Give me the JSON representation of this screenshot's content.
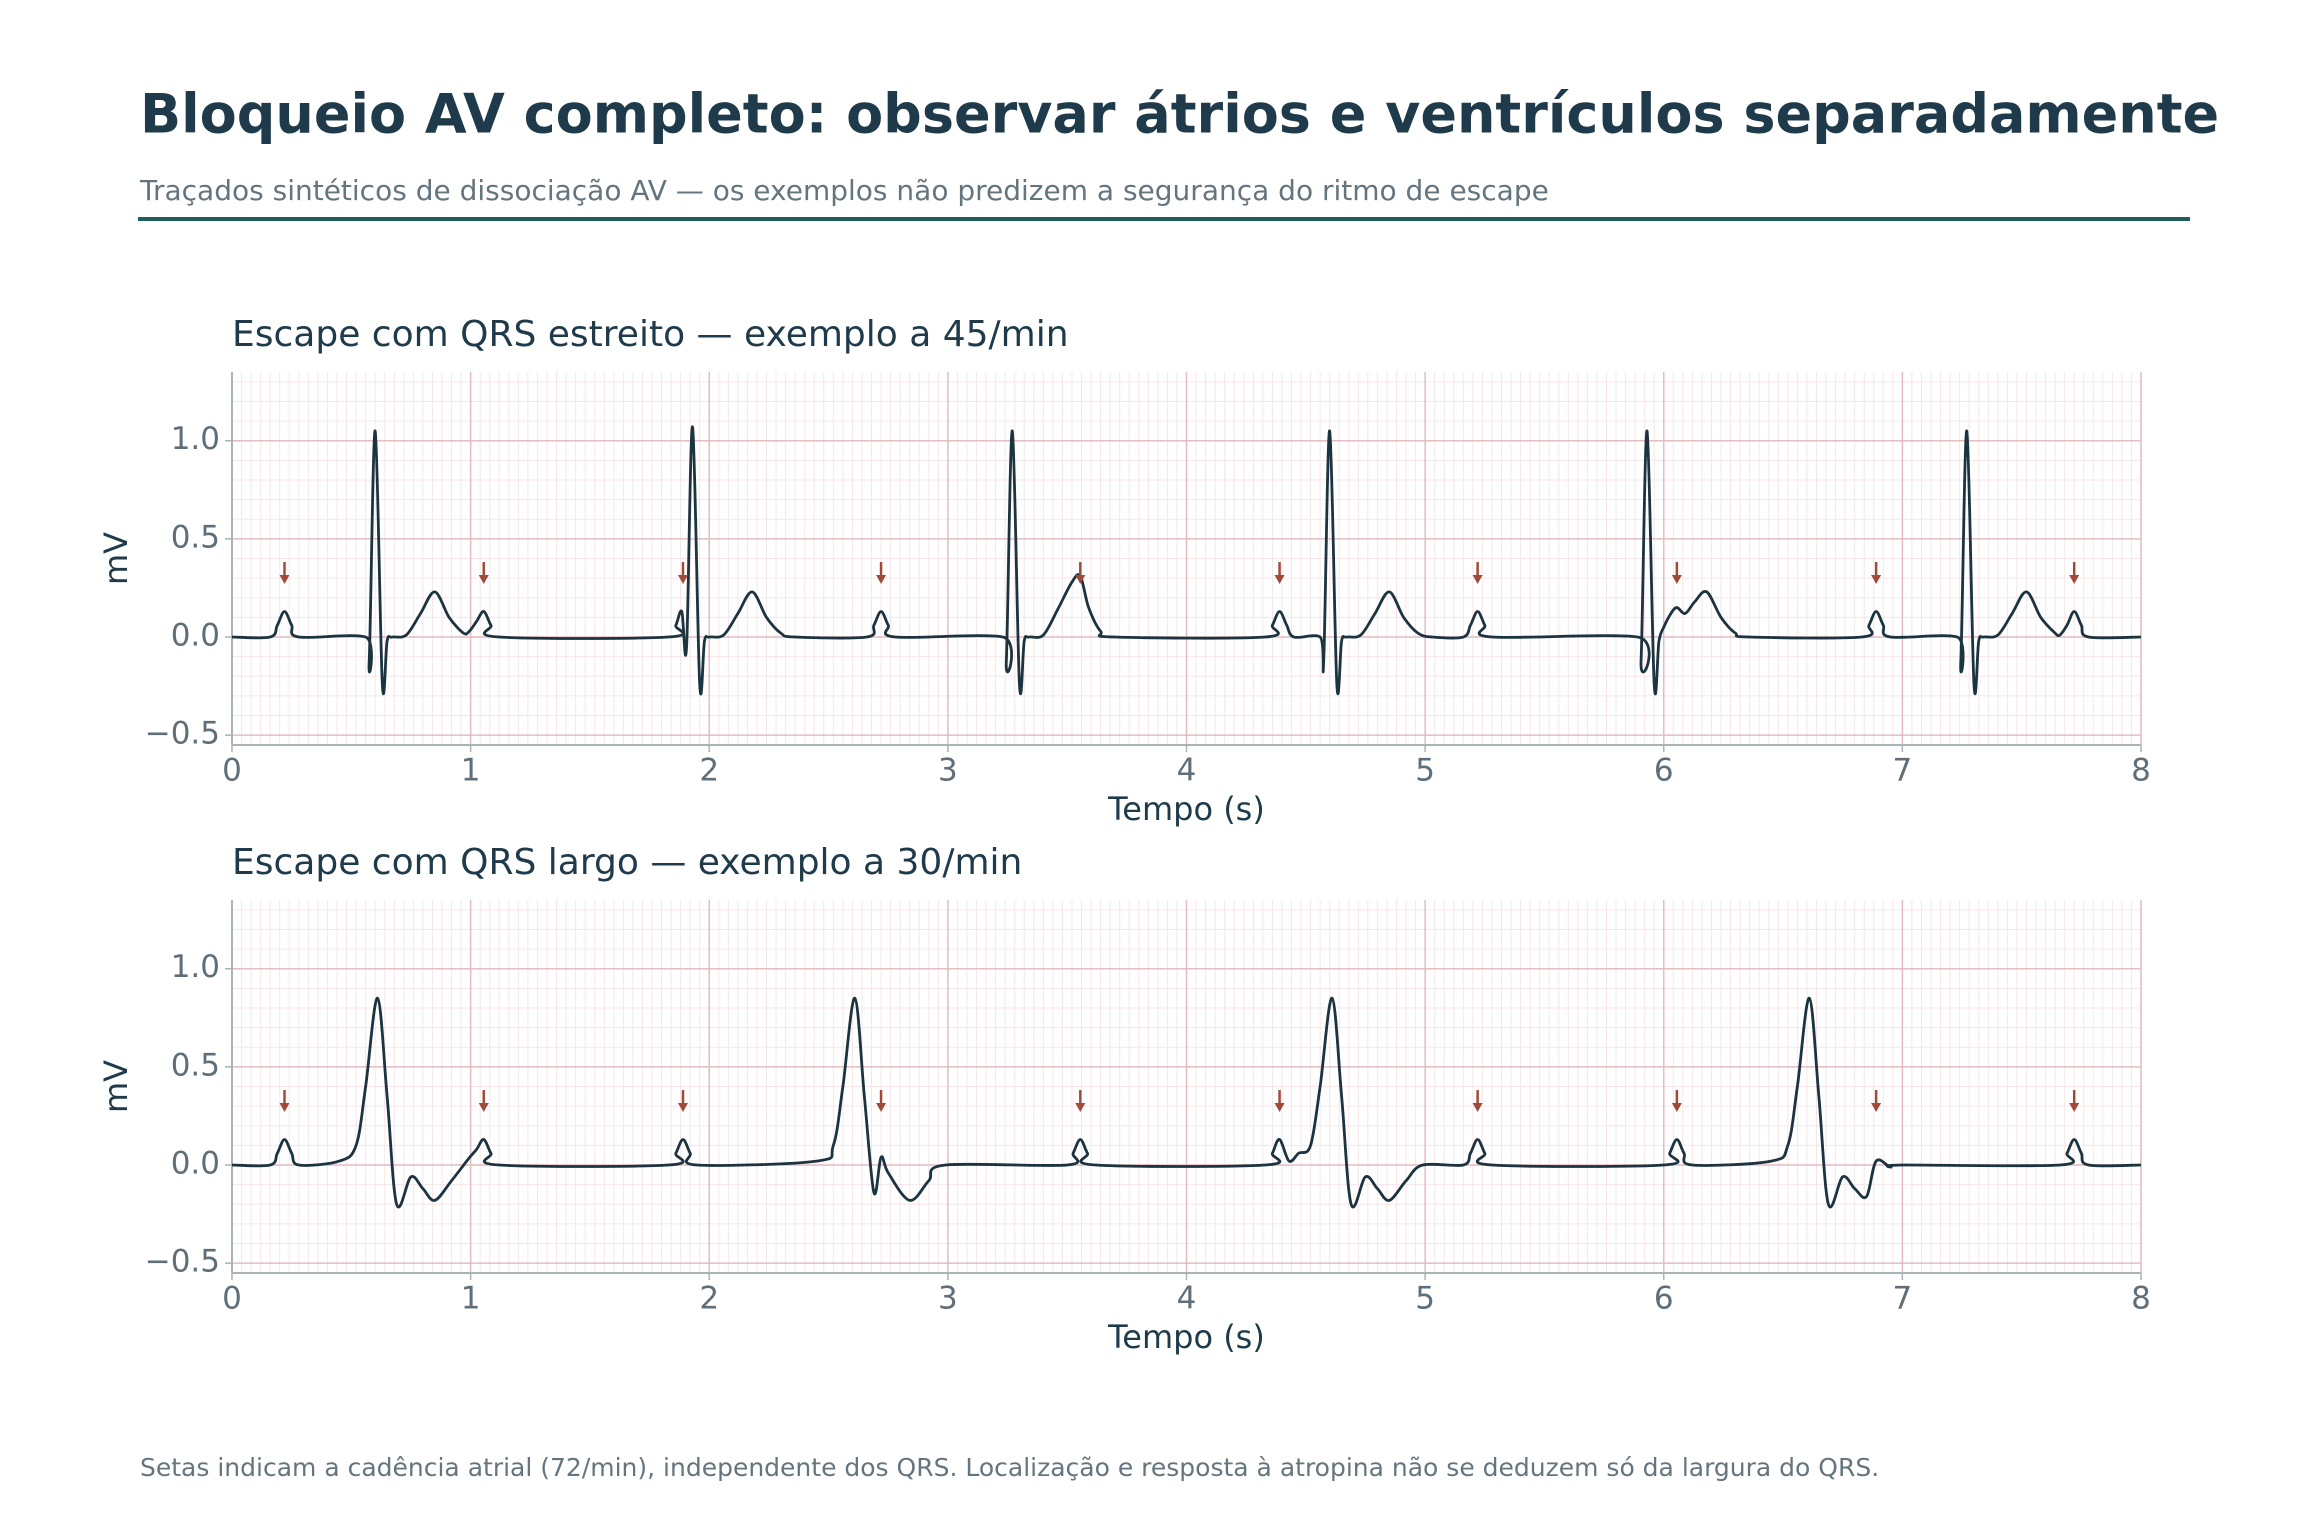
{
  "header": {
    "title": "Bloqueio AV completo: observar átrios e ventrículos separadamente",
    "subtitle": "Traçados sintéticos de dissociação AV — os exemplos não predizem a segurança do ritmo de escape"
  },
  "footnote": "Setas indicam a cadência atrial (72/min), independente dos QRS. Localização e resposta à atropina não se deduzem só da largura do QRS.",
  "chart_data": [
    {
      "type": "line",
      "title": "Escape com QRS estreito — exemplo a 45/min",
      "x_label": "Tempo (s)",
      "y_label": "mV",
      "xlim": [
        0,
        8
      ],
      "xticks": [
        0,
        1,
        2,
        3,
        4,
        5,
        6,
        7,
        8
      ],
      "ylim": [
        -0.55,
        1.35
      ],
      "yticks": [
        {
          "value": -0.5,
          "label": "−0.5"
        },
        {
          "value": 0,
          "label": "0.0"
        },
        0.5,
        {
          "value": 1,
          "label": "1.0"
        }
      ],
      "grid": true,
      "x": [
        0,
        0.16,
        0.19,
        0.22,
        0.25,
        0.28,
        0.56,
        0.575,
        0.6,
        0.63,
        0.65,
        0.67,
        0.73,
        0.79,
        0.85,
        0.91,
        0.97,
        0.995,
        1.025,
        1.055,
        1.085,
        1.12,
        1.83,
        1.86,
        1.885,
        1.905,
        1.93,
        1.96,
        1.98,
        2.0,
        2.06,
        2.12,
        2.18,
        2.24,
        2.3,
        2.36,
        2.66,
        2.69,
        2.72,
        2.75,
        2.78,
        3.23,
        3.245,
        3.27,
        3.3,
        3.32,
        3.34,
        3.4,
        3.46,
        3.52,
        3.555,
        3.59,
        3.64,
        3.7,
        4.33,
        4.36,
        4.39,
        4.42,
        4.45,
        4.56,
        4.575,
        4.6,
        4.63,
        4.65,
        4.67,
        4.73,
        4.79,
        4.85,
        4.91,
        4.97,
        5.03,
        5.16,
        5.19,
        5.22,
        5.25,
        5.28,
        5.89,
        5.905,
        5.93,
        5.96,
        5.98,
        6.0,
        6.03,
        6.055,
        6.09,
        6.13,
        6.18,
        6.24,
        6.3,
        6.36,
        6.83,
        6.86,
        6.89,
        6.92,
        6.95,
        7.23,
        7.245,
        7.27,
        7.3,
        7.32,
        7.34,
        7.4,
        7.46,
        7.52,
        7.58,
        7.64,
        7.66,
        7.69,
        7.72,
        7.75,
        7.78,
        8
      ],
      "series": [
        {
          "color": "#1c3340",
          "values": [
            0,
            0,
            0.06,
            0.13,
            0.06,
            0,
            0,
            -0.12,
            1.05,
            -0.24,
            -0.02,
            0,
            0.01,
            0.12,
            0.23,
            0.1,
            0.02,
            0.03,
            0.08,
            0.13,
            0.06,
            0,
            0,
            0.06,
            0.13,
            -0.05,
            1.07,
            -0.24,
            -0.02,
            0,
            0.01,
            0.12,
            0.23,
            0.1,
            0.02,
            0,
            0,
            0.06,
            0.13,
            0.06,
            0,
            0,
            -0.12,
            1.05,
            -0.24,
            -0.02,
            0,
            0.01,
            0.14,
            0.28,
            0.31,
            0.15,
            0.03,
            0,
            0,
            0.06,
            0.13,
            0.06,
            0,
            0,
            -0.12,
            1.05,
            -0.24,
            -0.02,
            0,
            0.01,
            0.12,
            0.23,
            0.1,
            0.02,
            0,
            0,
            0.06,
            0.13,
            0.06,
            0,
            0,
            -0.12,
            1.05,
            -0.24,
            -0.02,
            0.05,
            0.12,
            0.15,
            0.12,
            0.18,
            0.23,
            0.1,
            0.02,
            0,
            0,
            0.06,
            0.13,
            0.06,
            0,
            0,
            -0.12,
            1.05,
            -0.24,
            -0.02,
            0,
            0.01,
            0.12,
            0.23,
            0.1,
            0.02,
            0.01,
            0.06,
            0.13,
            0.06,
            0,
            0
          ]
        }
      ],
      "arrows": {
        "color": "#a04a3a",
        "y": 0.27,
        "x": [
          0.22,
          1.055,
          1.89,
          2.72,
          3.555,
          4.39,
          5.22,
          6.055,
          6.89,
          7.72
        ]
      }
    },
    {
      "type": "line",
      "title": "Escape com QRS largo — exemplo a 30/min",
      "x_label": "Tempo (s)",
      "y_label": "mV",
      "xlim": [
        0,
        8
      ],
      "xticks": [
        0,
        1,
        2,
        3,
        4,
        5,
        6,
        7,
        8
      ],
      "ylim": [
        -0.55,
        1.35
      ],
      "yticks": [
        {
          "value": -0.5,
          "label": "−0.5"
        },
        {
          "value": 0,
          "label": "0.0"
        },
        0.5,
        {
          "value": 1,
          "label": "1.0"
        }
      ],
      "grid": true,
      "x": [
        0,
        0.16,
        0.19,
        0.22,
        0.25,
        0.28,
        0.45,
        0.52,
        0.56,
        0.61,
        0.65,
        0.69,
        0.75,
        0.8,
        0.85,
        0.92,
        0.99,
        1.025,
        1.055,
        1.085,
        1.12,
        1.83,
        1.86,
        1.89,
        1.92,
        1.95,
        2.45,
        2.52,
        2.56,
        2.61,
        2.65,
        2.69,
        2.72,
        2.75,
        2.84,
        2.92,
        2.99,
        3.5,
        3.525,
        3.555,
        3.585,
        3.62,
        4.33,
        4.36,
        4.39,
        4.43,
        4.47,
        4.52,
        4.56,
        4.61,
        4.65,
        4.69,
        4.75,
        4.8,
        4.85,
        4.92,
        4.99,
        5.16,
        5.19,
        5.22,
        5.25,
        5.28,
        6.0,
        6.025,
        6.055,
        6.085,
        6.12,
        6.45,
        6.52,
        6.56,
        6.61,
        6.65,
        6.69,
        6.75,
        6.8,
        6.85,
        6.89,
        6.95,
        7.0,
        7.66,
        7.69,
        7.72,
        7.75,
        7.78,
        8
      ],
      "series": [
        {
          "color": "#1c3340",
          "values": [
            0,
            0,
            0.06,
            0.13,
            0.06,
            0,
            0.02,
            0.1,
            0.4,
            0.85,
            0.35,
            -0.2,
            -0.06,
            -0.12,
            -0.18,
            -0.08,
            0.03,
            0.08,
            0.13,
            0.06,
            0,
            0,
            0.06,
            0.13,
            0.06,
            0,
            0.02,
            0.1,
            0.4,
            0.85,
            0.35,
            -0.14,
            0.04,
            -0.04,
            -0.18,
            -0.08,
            0,
            0,
            0.06,
            0.13,
            0.06,
            0,
            0,
            0.06,
            0.13,
            0.02,
            0.06,
            0.1,
            0.4,
            0.85,
            0.35,
            -0.2,
            -0.06,
            -0.12,
            -0.18,
            -0.08,
            0,
            0,
            0.06,
            0.13,
            0.06,
            0,
            0,
            0.06,
            0.13,
            0.06,
            0,
            0.02,
            0.1,
            0.4,
            0.85,
            0.35,
            -0.2,
            -0.06,
            -0.12,
            -0.16,
            0.02,
            -0.01,
            0,
            0,
            0.06,
            0.13,
            0.06,
            0,
            0
          ]
        }
      ],
      "arrows": {
        "color": "#a04a3a",
        "y": 0.27,
        "x": [
          0.22,
          1.055,
          1.89,
          2.72,
          3.555,
          4.39,
          5.22,
          6.055,
          6.89,
          7.72
        ]
      }
    }
  ]
}
